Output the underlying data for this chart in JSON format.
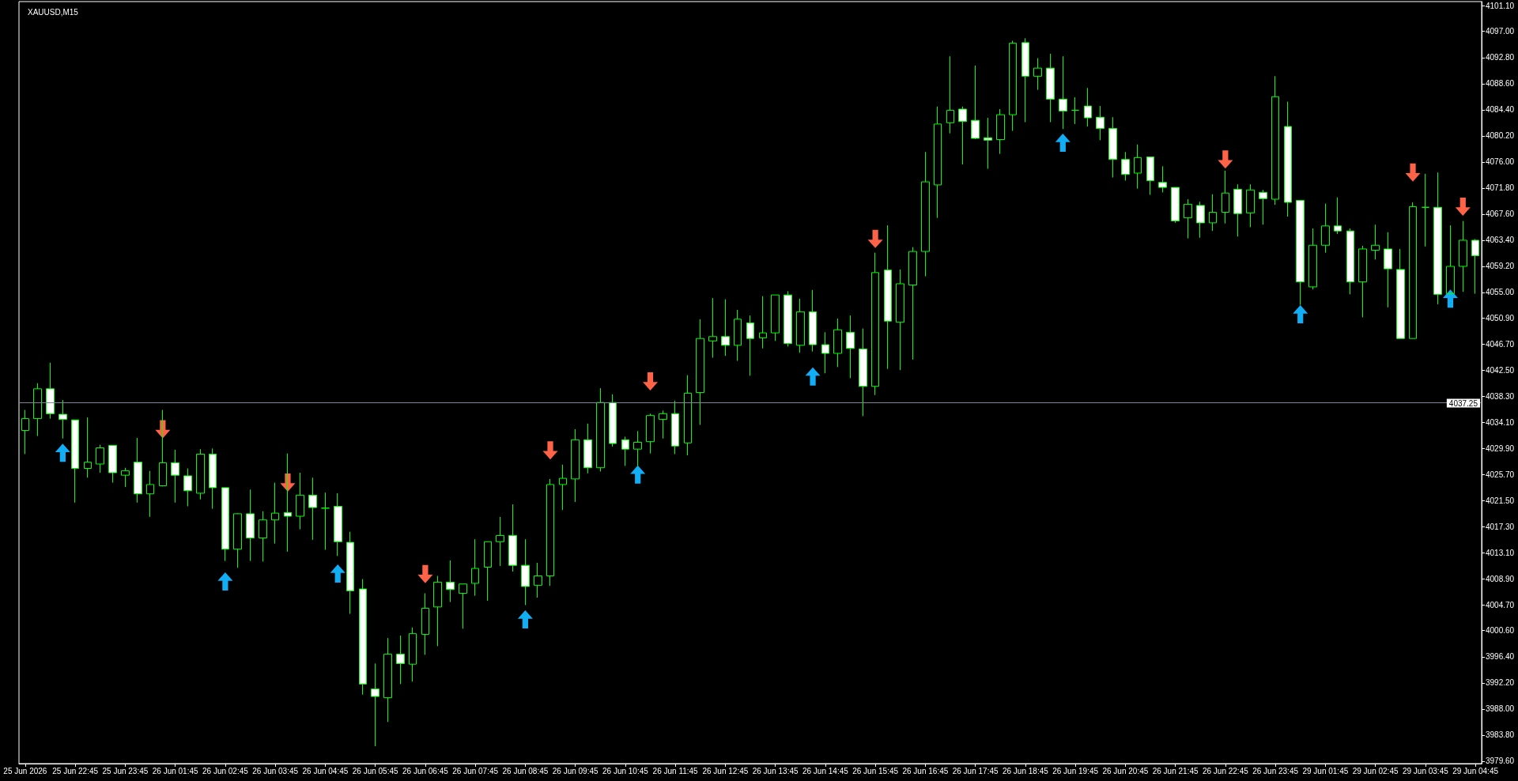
{
  "chart_data": {
    "type": "candlestick",
    "title": "XAUUSD,M15",
    "categories": [
      "25 Jun 2026",
      null,
      null,
      null,
      "25 Jun 22:45",
      null,
      null,
      null,
      "25 Jun 23:45",
      null,
      null,
      null,
      "26 Jun 01:45",
      null,
      null,
      null,
      "26 Jun 02:45",
      null,
      null,
      null,
      "26 Jun 03:45",
      null,
      null,
      null,
      "26 Jun 04:45",
      null,
      null,
      null,
      "26 Jun 05:45",
      null,
      null,
      null,
      "26 Jun 06:45",
      null,
      null,
      null,
      "26 Jun 07:45",
      null,
      null,
      null,
      "26 Jun 08:45",
      null,
      null,
      null,
      "26 Jun 09:45",
      null,
      null,
      null,
      "26 Jun 10:45",
      null,
      null,
      null,
      "26 Jun 11:45",
      null,
      null,
      null,
      "26 Jun 12:45",
      null,
      null,
      null,
      "26 Jun 13:45",
      null,
      null,
      null,
      "26 Jun 14:45",
      null,
      null,
      null,
      "26 Jun 15:45",
      null,
      null,
      null,
      "26 Jun 16:45",
      null,
      null,
      null,
      "26 Jun 17:45",
      null,
      null,
      null,
      "26 Jun 18:45",
      null,
      null,
      null,
      "26 Jun 19:45",
      null,
      null,
      null,
      "26 Jun 20:45",
      null,
      null,
      null,
      "26 Jun 21:45",
      null,
      null,
      null,
      "26 Jun 22:45",
      null,
      null,
      null,
      "26 Jun 23:45",
      null,
      null,
      null,
      "29 Jun 01:45",
      null,
      null,
      null,
      "29 Jun 02:45",
      null,
      null,
      null,
      "29 Jun 03:45",
      null,
      null,
      null,
      "29 Jun 04:45"
    ],
    "ohlc": [
      [
        4032.8,
        4036.1,
        4029.0,
        4034.7
      ],
      [
        4034.7,
        4040.4,
        4031.9,
        4039.5
      ],
      [
        4039.5,
        4043.7,
        4034.7,
        4035.5
      ],
      [
        4035.4,
        4037.7,
        4031.5,
        4034.6
      ],
      [
        4034.5,
        4034.5,
        4021.2,
        4026.7
      ],
      [
        4026.7,
        4034.9,
        4025.2,
        4027.7
      ],
      [
        4027.4,
        4030.5,
        4026.0,
        4030.0
      ],
      [
        4030.4,
        4030.4,
        4024.4,
        4026.0
      ],
      [
        4025.6,
        4026.8,
        4023.7,
        4026.3
      ],
      [
        4027.7,
        4031.6,
        4021.2,
        4022.6
      ],
      [
        4022.6,
        4026.3,
        4018.9,
        4024.1
      ],
      [
        4023.9,
        4036.1,
        4023.8,
        4027.6
      ],
      [
        4027.6,
        4029.7,
        4021.2,
        4025.6
      ],
      [
        4025.5,
        4026.7,
        4020.6,
        4023.1
      ],
      [
        4022.7,
        4029.8,
        4021.7,
        4029.0
      ],
      [
        4029.0,
        4029.9,
        4020.2,
        4023.6
      ],
      [
        4023.6,
        4023.6,
        4011.8,
        4013.7
      ],
      [
        4013.7,
        4019.5,
        4010.7,
        4019.4
      ],
      [
        4019.4,
        4023.3,
        4011.8,
        4015.5
      ],
      [
        4015.5,
        4019.8,
        4011.7,
        4018.4
      ],
      [
        4018.4,
        4024.4,
        4014.6,
        4019.5
      ],
      [
        4019.6,
        4029.1,
        4013.3,
        4019.0
      ],
      [
        4019.0,
        4026.0,
        4016.9,
        4022.4
      ],
      [
        4022.4,
        4025.2,
        4015.2,
        4020.4
      ],
      [
        4020.3,
        4022.8,
        4013.6,
        4020.3
      ],
      [
        4020.6,
        4022.7,
        4012.6,
        4014.9
      ],
      [
        4014.8,
        4016.5,
        4003.3,
        4007.0
      ],
      [
        4007.3,
        4008.9,
        3990.3,
        3992.0
      ],
      [
        3991.2,
        3995.3,
        3982.0,
        3990.0
      ],
      [
        3989.8,
        3999.4,
        3985.9,
        3996.8
      ],
      [
        3996.8,
        3999.8,
        3992.0,
        3995.3
      ],
      [
        3995.2,
        4001.1,
        3992.4,
        4000.1
      ],
      [
        4000.0,
        4006.6,
        3996.7,
        4004.2
      ],
      [
        4004.4,
        4009.4,
        3998.1,
        4008.4
      ],
      [
        4008.4,
        4011.9,
        4005.2,
        4007.2
      ],
      [
        4006.6,
        4008.1,
        4000.9,
        4008.1
      ],
      [
        4008.2,
        4015.3,
        4006.2,
        4010.6
      ],
      [
        4010.8,
        4014.9,
        4005.4,
        4014.9
      ],
      [
        4014.9,
        4018.9,
        4011.0,
        4015.9
      ],
      [
        4015.9,
        4020.9,
        4010.1,
        4011.1
      ],
      [
        4011.1,
        4015.3,
        4004.7,
        4007.7
      ],
      [
        4007.9,
        4011.5,
        4005.9,
        4009.4
      ],
      [
        4009.4,
        4025.0,
        4007.8,
        4024.1
      ],
      [
        4024.1,
        4027.3,
        4020.0,
        4025.1
      ],
      [
        4025.0,
        4033.0,
        4021.3,
        4031.3
      ],
      [
        4031.3,
        4033.9,
        4025.9,
        4026.8
      ],
      [
        4026.8,
        4039.6,
        4026.2,
        4037.3
      ],
      [
        4037.3,
        4038.6,
        4030.2,
        4030.7
      ],
      [
        4031.3,
        4031.8,
        4027.1,
        4029.8
      ],
      [
        4029.8,
        4032.7,
        4027.1,
        4030.9
      ],
      [
        4031.0,
        4035.5,
        4029.1,
        4035.2
      ],
      [
        4034.6,
        4036.0,
        4031.5,
        4035.5
      ],
      [
        4035.5,
        4037.6,
        4029.0,
        4030.3
      ],
      [
        4030.8,
        4041.7,
        4028.8,
        4038.8
      ],
      [
        4038.9,
        4050.7,
        4033.7,
        4047.6
      ],
      [
        4047.2,
        4054.1,
        4044.5,
        4047.9
      ],
      [
        4047.9,
        4053.9,
        4044.8,
        4046.5
      ],
      [
        4046.5,
        4052.2,
        4044.0,
        4050.7
      ],
      [
        4050.1,
        4051.3,
        4041.6,
        4047.6
      ],
      [
        4047.7,
        4054.4,
        4046.0,
        4048.5
      ],
      [
        4048.5,
        4054.6,
        4047.2,
        4054.6
      ],
      [
        4054.6,
        4055.2,
        4046.3,
        4046.8
      ],
      [
        4046.5,
        4054.0,
        4045.3,
        4051.9
      ],
      [
        4051.9,
        4055.4,
        4045.5,
        4046.6
      ],
      [
        4046.6,
        4048.6,
        4042.0,
        4045.2
      ],
      [
        4045.2,
        4050.8,
        4043.0,
        4049.0
      ],
      [
        4048.6,
        4051.3,
        4041.2,
        4046.0
      ],
      [
        4045.9,
        4049.2,
        4035.1,
        4039.9
      ],
      [
        4039.9,
        4061.4,
        4038.5,
        4058.2
      ],
      [
        4058.6,
        4065.8,
        4042.7,
        4050.4
      ],
      [
        4050.2,
        4058.7,
        4042.5,
        4056.4
      ],
      [
        4056.2,
        4062.3,
        4044.2,
        4061.6
      ],
      [
        4061.6,
        4077.6,
        4057.6,
        4072.8
      ],
      [
        4072.3,
        4084.9,
        4067.0,
        4082.1
      ],
      [
        4082.3,
        4093.0,
        4080.6,
        4084.3
      ],
      [
        4084.5,
        4084.9,
        4075.6,
        4082.5
      ],
      [
        4082.7,
        4091.5,
        4079.7,
        4079.8
      ],
      [
        4079.9,
        4083.1,
        4074.9,
        4079.5
      ],
      [
        4079.6,
        4084.5,
        4077.3,
        4083.6
      ],
      [
        4083.6,
        4095.5,
        4081.0,
        4095.1
      ],
      [
        4095.2,
        4095.9,
        4082.4,
        4089.8
      ],
      [
        4089.8,
        4092.7,
        4087.6,
        4091.1
      ],
      [
        4091.1,
        4093.4,
        4082.4,
        4086.1
      ],
      [
        4086.1,
        4093.0,
        4081.3,
        4084.2
      ],
      [
        4084.3,
        4086.4,
        4082.1,
        4084.3
      ],
      [
        4085.0,
        4087.9,
        4081.7,
        4083.1
      ],
      [
        4083.2,
        4085.0,
        4079.5,
        4081.4
      ],
      [
        4081.4,
        4083.2,
        4073.5,
        4076.4
      ],
      [
        4076.4,
        4077.6,
        4073.0,
        4074.0
      ],
      [
        4074.2,
        4078.8,
        4071.7,
        4076.7
      ],
      [
        4076.8,
        4076.8,
        4070.7,
        4073.0
      ],
      [
        4072.7,
        4075.3,
        4071.1,
        4071.9
      ],
      [
        4071.9,
        4071.9,
        4066.2,
        4066.5
      ],
      [
        4067.0,
        4070.0,
        4063.7,
        4069.2
      ],
      [
        4069.0,
        4069.6,
        4063.8,
        4066.2
      ],
      [
        4066.2,
        4070.8,
        4064.9,
        4067.9
      ],
      [
        4067.9,
        4074.6,
        4066.1,
        4071.0
      ],
      [
        4071.6,
        4072.4,
        4064.0,
        4067.7
      ],
      [
        4067.8,
        4072.4,
        4065.5,
        4071.5
      ],
      [
        4071.1,
        4071.5,
        4065.9,
        4070.1
      ],
      [
        4070.0,
        4089.8,
        4069.1,
        4086.5
      ],
      [
        4081.7,
        4085.7,
        4067.2,
        4069.5
      ],
      [
        4069.8,
        4069.8,
        4053.0,
        4056.7
      ],
      [
        4055.9,
        4065.3,
        4055.5,
        4062.6
      ],
      [
        4062.6,
        4069.3,
        4061.4,
        4065.7
      ],
      [
        4065.7,
        4070.3,
        4064.4,
        4064.9
      ],
      [
        4064.9,
        4065.3,
        4054.7,
        4056.7
      ],
      [
        4056.7,
        4062.5,
        4051.0,
        4062.0
      ],
      [
        4061.8,
        4065.9,
        4060.3,
        4062.6
      ],
      [
        4062.0,
        4064.7,
        4052.6,
        4058.8
      ],
      [
        4058.7,
        4062.0,
        4047.6,
        4047.6
      ],
      [
        4047.6,
        4069.5,
        4047.6,
        4068.8
      ],
      [
        4068.7,
        4074.1,
        4062.4,
        4068.7
      ],
      [
        4068.7,
        4074.3,
        4053.1,
        4054.7
      ],
      [
        4054.8,
        4065.8,
        4054.6,
        4059.2
      ],
      [
        4059.2,
        4066.5,
        4055.1,
        4063.4
      ],
      [
        4063.4,
        4063.6,
        4054.8,
        4060.9
      ]
    ],
    "color": "#00ff00",
    "colors": [
      "#00ff00",
      "#00ff00",
      "#ffffff",
      "#ffffff",
      "#ffffff",
      "#00ff00",
      "#00ff00",
      "#ffffff",
      "#00ff00",
      "#ffffff",
      "#00ff00",
      "#00ff00",
      "#ffffff",
      "#ffffff",
      "#00ff00",
      "#ffffff",
      "#ffffff",
      "#00ff00",
      "#ffffff",
      "#00ff00",
      "#00ff00",
      "#ffffff",
      "#00ff00",
      "#ffffff",
      "#00ff00",
      "#ffffff",
      "#ffffff",
      "#ffffff",
      "#ffffff",
      "#00ff00",
      "#ffffff",
      "#00ff00",
      "#00ff00",
      "#00ff00",
      "#ffffff",
      "#00ff00",
      "#00ff00",
      "#00ff00",
      "#00ff00",
      "#ffffff",
      "#ffffff",
      "#00ff00",
      "#00ff00",
      "#00ff00",
      "#00ff00",
      "#ffffff",
      "#00ff00",
      "#ffffff",
      "#ffffff",
      "#00ff00",
      "#00ff00",
      "#00ff00",
      "#ffffff",
      "#00ff00",
      "#00ff00",
      "#00ff00",
      "#ffffff",
      "#00ff00",
      "#ffffff",
      "#00ff00",
      "#00ff00",
      "#ffffff",
      "#00ff00",
      "#ffffff",
      "#ffffff",
      "#00ff00",
      "#ffffff",
      "#ffffff",
      "#00ff00",
      "#ffffff",
      "#00ff00",
      "#00ff00",
      "#00ff00",
      "#00ff00",
      "#00ff00",
      "#ffffff",
      "#ffffff",
      "#ffffff",
      "#00ff00",
      "#00ff00",
      "#ffffff",
      "#00ff00",
      "#ffffff",
      "#ffffff",
      "#00ff00",
      "#ffffff",
      "#ffffff",
      "#ffffff",
      "#ffffff",
      "#00ff00",
      "#ffffff",
      "#ffffff",
      "#ffffff",
      "#00ff00",
      "#ffffff",
      "#00ff00",
      "#00ff00",
      "#ffffff",
      "#00ff00",
      "#ffffff",
      "#00ff00",
      "#ffffff",
      "#ffffff",
      "#00ff00",
      "#00ff00",
      "#ffffff",
      "#ffffff",
      "#00ff00",
      "#00ff00",
      "#ffffff",
      "#ffffff",
      "#00ff00",
      "#00ff00",
      "#ffffff",
      "#00ff00",
      "#00ff00",
      "#ffffff"
    ],
    "series": [
      {
        "type": "scatter",
        "color": "#12aef5",
        "marker": "triangle",
        "values": [
          null,
          null,
          null,
          4029.2,
          null,
          null,
          null,
          null,
          null,
          null,
          null,
          null,
          null,
          null,
          null,
          null,
          4008.5,
          null,
          null,
          null,
          null,
          null,
          null,
          null,
          null,
          4009.8,
          null,
          null,
          null,
          null,
          null,
          null,
          null,
          null,
          null,
          null,
          null,
          null,
          null,
          null,
          4002.4,
          null,
          null,
          null,
          null,
          null,
          null,
          null,
          null,
          4025.7,
          null,
          null,
          null,
          null,
          null,
          null,
          null,
          null,
          null,
          null,
          null,
          null,
          null,
          4041.5,
          null,
          null,
          null,
          null,
          null,
          null,
          null,
          null,
          null,
          null,
          null,
          null,
          null,
          null,
          null,
          null,
          null,
          null,
          null,
          4079.1,
          null,
          null,
          null,
          null,
          null,
          null,
          null,
          null,
          null,
          null,
          null,
          null,
          null,
          null,
          null,
          null,
          null,
          null,
          4051.5,
          null,
          null,
          null,
          null,
          null,
          null,
          null,
          null,
          null,
          null,
          null,
          4054.0,
          null,
          null
        ]
      },
      {
        "type": "scatter",
        "color": "#ff6347",
        "marker": "triangle",
        "values": [
          null,
          null,
          null,
          null,
          null,
          null,
          null,
          null,
          null,
          null,
          null,
          4033.0,
          null,
          null,
          null,
          null,
          null,
          null,
          null,
          null,
          null,
          4024.4,
          null,
          null,
          null,
          null,
          null,
          null,
          null,
          null,
          null,
          null,
          4009.7,
          null,
          null,
          null,
          null,
          null,
          null,
          null,
          null,
          null,
          4029.6,
          null,
          null,
          null,
          null,
          null,
          null,
          null,
          4040.7,
          null,
          null,
          null,
          null,
          null,
          null,
          null,
          null,
          null,
          null,
          null,
          null,
          null,
          null,
          null,
          null,
          null,
          4063.6,
          null,
          null,
          null,
          null,
          null,
          null,
          null,
          null,
          null,
          null,
          null,
          null,
          null,
          null,
          null,
          null,
          null,
          null,
          null,
          null,
          null,
          null,
          null,
          null,
          null,
          null,
          null,
          4076.4,
          null,
          null,
          null,
          null,
          null,
          null,
          null,
          null,
          null,
          null,
          null,
          null,
          null,
          null,
          4074.3,
          null,
          null,
          null,
          4068.8,
          null
        ]
      }
    ],
    "ylim": [
      3979.2,
      4101.8
    ],
    "yticks": [
      {
        "value": 3979.6,
        "label": "3979.60"
      },
      {
        "value": 3983.8,
        "label": "3983.80"
      },
      {
        "value": 3988.0,
        "label": "3988.00"
      },
      {
        "value": 3992.2,
        "label": "3992.20"
      },
      {
        "value": 3996.4,
        "label": "3996.40"
      },
      {
        "value": 4000.6,
        "label": "4000.60"
      },
      {
        "value": 4004.7,
        "label": "4004.70"
      },
      {
        "value": 4008.9,
        "label": "4008.90"
      },
      {
        "value": 4013.1,
        "label": "4013.10"
      },
      {
        "value": 4017.3,
        "label": "4017.30"
      },
      {
        "value": 4021.5,
        "label": "4021.50"
      },
      {
        "value": 4025.7,
        "label": "4025.70"
      },
      {
        "value": 4029.9,
        "label": "4029.90"
      },
      {
        "value": 4034.1,
        "label": "4034.10"
      },
      {
        "value": 4038.3,
        "label": "4038.30"
      },
      {
        "value": 4042.5,
        "label": "4042.50"
      },
      {
        "value": 4046.7,
        "label": "4046.70"
      },
      {
        "value": 4050.9,
        "label": "4050.90"
      },
      {
        "value": 4055.0,
        "label": "4055.00"
      },
      {
        "value": 4059.2,
        "label": "4059.20"
      },
      {
        "value": 4063.4,
        "label": "4063.40"
      },
      {
        "value": 4067.6,
        "label": "4067.60"
      },
      {
        "value": 4071.8,
        "label": "4071.80"
      },
      {
        "value": 4076.0,
        "label": "4076.00"
      },
      {
        "value": 4080.2,
        "label": "4080.20"
      },
      {
        "value": 4084.4,
        "label": "4084.40"
      },
      {
        "value": 4088.6,
        "label": "4088.60"
      },
      {
        "value": 4092.8,
        "label": "4092.80"
      },
      {
        "value": 4097.0,
        "label": "4097.00"
      },
      {
        "value": 4101.1,
        "label": "4101.10"
      }
    ],
    "ref_lines": [
      {
        "axis": "y",
        "value": 4037.25,
        "label": "4037.25",
        "color": "#778899"
      }
    ]
  }
}
